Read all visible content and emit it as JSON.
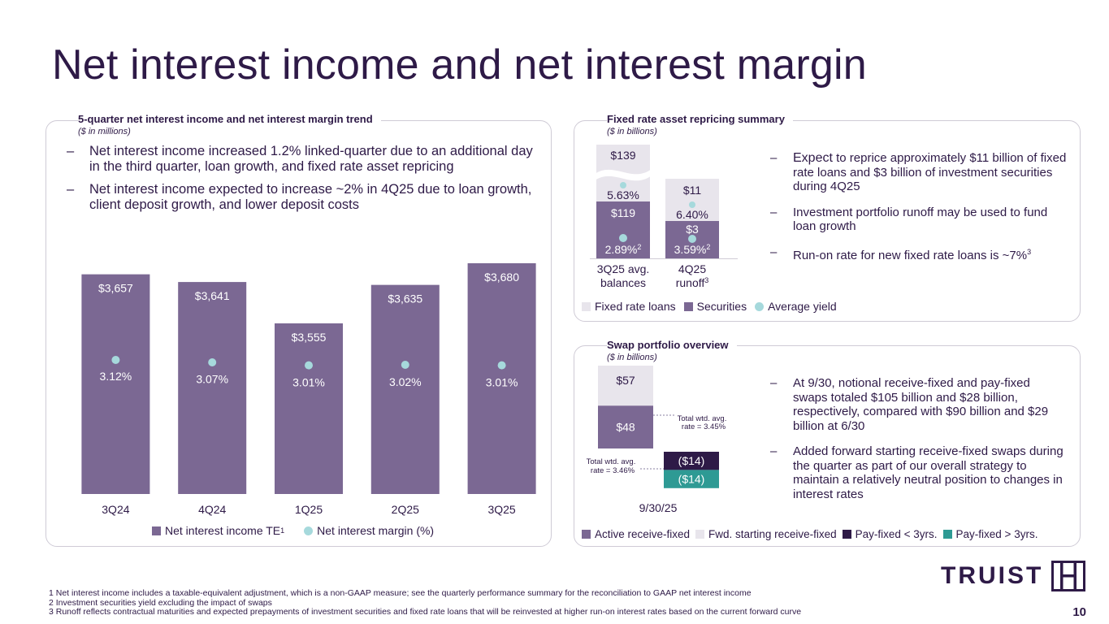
{
  "page": {
    "title": "Net interest income and net interest margin",
    "page_number": "10"
  },
  "colors": {
    "purple": "#7b6893",
    "light": "#e8e5ec",
    "teal": "#a6d9dc",
    "dark": "#2e1a47",
    "green": "#2e9a94"
  },
  "left_panel": {
    "title": "5-quarter net interest income and net interest margin trend",
    "subtitle": "($ in millions)",
    "bullets": [
      "Net interest income increased 1.2% linked-quarter due to an additional day in the third quarter, loan growth, and fixed rate asset repricing",
      "Net interest income expected to increase ~2% in 4Q25 due to loan growth, client deposit growth, and lower deposit costs"
    ],
    "legend": {
      "bar_label": "Net interest income TE",
      "bar_sup": "1",
      "dot_label": "Net interest margin (%)"
    }
  },
  "repricing_panel": {
    "title": "Fixed rate asset repricing summary",
    "subtitle": "($ in billions)",
    "bullets": [
      {
        "lead": "Expect",
        "text": " to reprice approximately $11 billion of fixed rate loans and $3 billion of investment securities during 4Q25",
        "sup": ""
      },
      {
        "lead": "",
        "text": "Investment portfolio runoff may be used to fund loan growth",
        "sup": ""
      },
      {
        "lead": "",
        "text": "Run-on rate for new fixed rate loans is ~7%",
        "sup": "3"
      }
    ],
    "legend": {
      "loans": "Fixed rate loans",
      "securities": "Securities",
      "yield": "Average yield"
    }
  },
  "swap_panel": {
    "title": "Swap portfolio overview",
    "subtitle": "($ in billions)",
    "bullets": [
      "At 9/30, notional receive-fixed and pay-fixed swaps totaled $105 billion and $28 billion, respectively, compared with $90 billion and $29 billion at 6/30",
      "Added forward starting receive-fixed swaps during the quarter as part of our overall strategy to maintain a relatively neutral position to changes in interest rates"
    ],
    "legend": {
      "active": "Active receive-fixed",
      "fwd": "Fwd. starting receive-fixed",
      "pay_short": "Pay-fixed < 3yrs.",
      "pay_long": "Pay-fixed > 3yrs."
    }
  },
  "footnotes": [
    "1 Net interest income includes a taxable-equivalent adjustment, which is a non-GAAP measure; see the quarterly performance summary for the reconciliation to GAAP net interest income",
    "2 Investment securities yield excluding the impact of swaps",
    "3 Runoff reflects contractual maturities and expected prepayments of investment securities and fixed rate loans that will be reinvested at higher run-on interest rates based on the current forward curve"
  ],
  "logo": {
    "text": "TRUIST"
  },
  "chart_data": [
    {
      "type": "bar",
      "title": "5-quarter net interest income and net interest margin trend",
      "categories": [
        "3Q24",
        "4Q24",
        "1Q25",
        "2Q25",
        "3Q25"
      ],
      "series": [
        {
          "name": "Net interest income TE",
          "values": [
            3657,
            3641,
            3555,
            3635,
            3680
          ],
          "labels": [
            "$3,657",
            "$3,641",
            "$3,555",
            "$3,635",
            "$3,680"
          ]
        },
        {
          "name": "Net interest margin (%)",
          "values": [
            3.12,
            3.07,
            3.01,
            3.02,
            3.01
          ],
          "labels": [
            "3.12%",
            "3.07%",
            "3.01%",
            "3.02%",
            "3.01%"
          ]
        }
      ]
    },
    {
      "type": "bar",
      "stacked": true,
      "title": "Fixed rate asset repricing summary",
      "categories": [
        "3Q25 avg. balances",
        "4Q25 runoff"
      ],
      "category_lines": [
        [
          "3Q25 avg.",
          "balances",
          ""
        ],
        [
          "4Q25",
          "runoff",
          "3"
        ]
      ],
      "series": [
        {
          "name": "Securities",
          "values": [
            119,
            3
          ],
          "labels": [
            "$119",
            "$3"
          ]
        },
        {
          "name": "Fixed rate loans",
          "values": [
            139,
            11
          ],
          "labels": [
            "$139",
            "$11"
          ]
        }
      ],
      "yields": {
        "Fixed rate loans": {
          "values": [
            5.63,
            6.4
          ],
          "labels": [
            "5.63%",
            "6.40%"
          ]
        },
        "Securities": {
          "values": [
            2.89,
            3.59
          ],
          "labels": [
            "2.89%",
            "3.59%"
          ],
          "sup": "2"
        }
      }
    },
    {
      "type": "bar",
      "stacked": true,
      "title": "Swap portfolio overview",
      "categories": [
        "9/30/25"
      ],
      "series": [
        {
          "name": "Active receive-fixed",
          "values": [
            48
          ],
          "labels": [
            "$48"
          ]
        },
        {
          "name": "Fwd. starting receive-fixed",
          "values": [
            57
          ],
          "labels": [
            "$57"
          ]
        },
        {
          "name": "Pay-fixed < 3yrs.",
          "values": [
            -14
          ],
          "labels": [
            "($14)"
          ]
        },
        {
          "name": "Pay-fixed > 3yrs.",
          "values": [
            -14
          ],
          "labels": [
            "($14)"
          ]
        }
      ],
      "annotations": {
        "receive_rate": [
          "Total wtd. avg.",
          "rate = 3.45%"
        ],
        "pay_rate": [
          "Total wtd. avg.",
          "rate = 3.46%"
        ]
      }
    }
  ]
}
